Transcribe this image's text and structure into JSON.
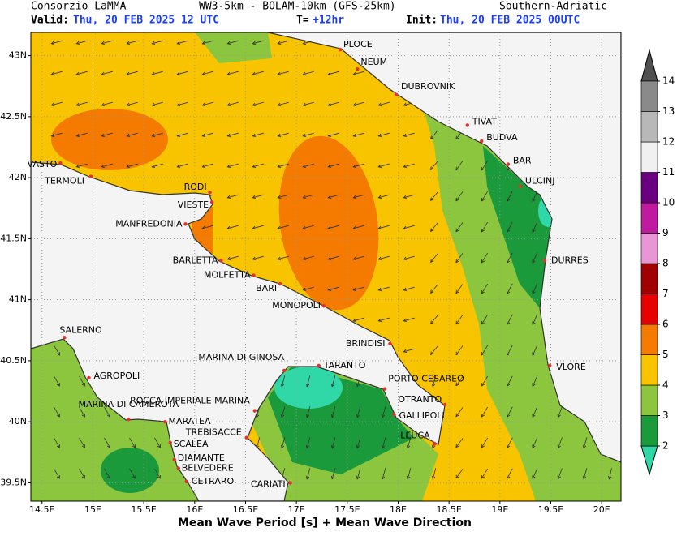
{
  "header": {
    "org": "Consorzio LaMMA",
    "model": "WW3-5km - BOLAM-10km (GFS-25km)",
    "region": "Southern-Adriatic",
    "valid_label": "Valid:",
    "valid": "Thu, 20 FEB 2025  12 UTC",
    "step_label": "T=",
    "step": "+12hr",
    "init_label": "Init:",
    "init": "Thu, 20 FEB 2025 00UTC"
  },
  "map": {
    "lon_range": [
      14.39,
      20.19
    ],
    "lat_range": [
      39.35,
      43.19
    ],
    "lon_ticks": [
      {
        "value": 14.5,
        "label": "14.5E"
      },
      {
        "value": 15,
        "label": "15E"
      },
      {
        "value": 15.5,
        "label": "15.5E"
      },
      {
        "value": 16,
        "label": "16E"
      },
      {
        "value": 16.5,
        "label": "16.5E"
      },
      {
        "value": 17,
        "label": "17E"
      },
      {
        "value": 17.5,
        "label": "17.5E"
      },
      {
        "value": 18,
        "label": "18E"
      },
      {
        "value": 18.5,
        "label": "18.5E"
      },
      {
        "value": 19,
        "label": "19E"
      },
      {
        "value": 19.5,
        "label": "19.5E"
      },
      {
        "value": 20,
        "label": "20E"
      }
    ],
    "lat_ticks": [
      {
        "value": 43,
        "label": "43N"
      },
      {
        "value": 42.5,
        "label": "42.5N"
      },
      {
        "value": 42,
        "label": "42N"
      },
      {
        "value": 41.5,
        "label": "41.5N"
      },
      {
        "value": 41,
        "label": "41N"
      },
      {
        "value": 40.5,
        "label": "40.5N"
      },
      {
        "value": 40,
        "label": "40N"
      },
      {
        "value": 39.5,
        "label": "39.5N"
      }
    ],
    "cities": [
      {
        "name": "PLOCE",
        "lon": 17.43,
        "lat": 43.05
      },
      {
        "name": "NEUM",
        "lon": 17.6,
        "lat": 42.89
      },
      {
        "name": "DUBROVNIK",
        "lon": 17.98,
        "lat": 42.68
      },
      {
        "name": "TIVAT",
        "lon": 18.68,
        "lat": 42.43
      },
      {
        "name": "BUDVA",
        "lon": 18.82,
        "lat": 42.3
      },
      {
        "name": "BAR",
        "lon": 19.08,
        "lat": 42.11
      },
      {
        "name": "ULCINJ",
        "lon": 19.2,
        "lat": 41.93
      },
      {
        "name": "DURRES",
        "lon": 19.44,
        "lat": 41.32
      },
      {
        "name": "VLORE",
        "lon": 19.49,
        "lat": 40.46
      },
      {
        "name": "VASTO",
        "lon": 14.68,
        "lat": 42.12
      },
      {
        "name": "TERMOLI",
        "lon": 14.98,
        "lat": 42.01
      },
      {
        "name": "RODI",
        "lon": 16.15,
        "lat": 41.88
      },
      {
        "name": "VIESTE",
        "lon": 16.17,
        "lat": 41.8
      },
      {
        "name": "MANFREDONIA",
        "lon": 15.91,
        "lat": 41.62
      },
      {
        "name": "BARLETTA",
        "lon": 16.26,
        "lat": 41.32
      },
      {
        "name": "MOLFETTA",
        "lon": 16.58,
        "lat": 41.2
      },
      {
        "name": "BARI",
        "lon": 16.84,
        "lat": 41.13
      },
      {
        "name": "MONOPOLI",
        "lon": 17.27,
        "lat": 40.95
      },
      {
        "name": "BRINDISI",
        "lon": 17.92,
        "lat": 40.64
      },
      {
        "name": "SALERNO",
        "lon": 14.72,
        "lat": 40.69
      },
      {
        "name": "AGROPOLI",
        "lon": 14.96,
        "lat": 40.36
      },
      {
        "name": "MARINA DI CAMEROTA",
        "lon": 15.35,
        "lat": 40.02
      },
      {
        "name": "MARATEA",
        "lon": 15.71,
        "lat": 40.0
      },
      {
        "name": "SCALEA",
        "lon": 15.76,
        "lat": 39.83
      },
      {
        "name": "DIAMANTE",
        "lon": 15.8,
        "lat": 39.69
      },
      {
        "name": "BELVEDERE",
        "lon": 15.84,
        "lat": 39.62
      },
      {
        "name": "CETRARO",
        "lon": 15.92,
        "lat": 39.51
      },
      {
        "name": "ROCCA IMPERIALE MARINA",
        "lon": 16.59,
        "lat": 40.09
      },
      {
        "name": "TREBISACCE",
        "lon": 16.51,
        "lat": 39.87
      },
      {
        "name": "CARIATI",
        "lon": 16.94,
        "lat": 39.5
      },
      {
        "name": "MARINA DI GINOSA",
        "lon": 16.88,
        "lat": 40.42
      },
      {
        "name": "TARANTO",
        "lon": 17.22,
        "lat": 40.46
      },
      {
        "name": "PORTO CESAREO",
        "lon": 17.87,
        "lat": 40.27
      },
      {
        "name": "OTRANTO",
        "lon": 18.46,
        "lat": 40.14
      },
      {
        "name": "GALLIPOLI",
        "lon": 17.96,
        "lat": 40.06
      },
      {
        "name": "LEUCA",
        "lon": 18.36,
        "lat": 39.82
      }
    ]
  },
  "colorbar": {
    "levels": [
      2,
      3,
      4,
      5,
      6,
      7,
      8,
      9,
      10,
      11,
      12,
      13,
      14
    ],
    "colors": [
      "#1a9a3a",
      "#8cc63f",
      "#f8c400",
      "#f57a00",
      "#e60000",
      "#a00000",
      "#e896d6",
      "#c01aa0",
      "#6a0080",
      "#f0f0f0",
      "#b8b8b8",
      "#8a8a8a"
    ],
    "under": "#30d8a8",
    "over": "#505050"
  },
  "footer": "Mean Wave Period [s] + Mean Wave Direction"
}
